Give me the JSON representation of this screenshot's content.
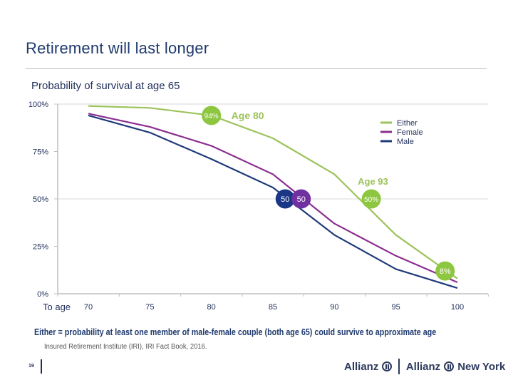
{
  "page": {
    "title": "Retirement will last longer",
    "subtitle": "Probability of survival at age 65",
    "footnote": "Either = probability at least one member of male-female couple (both age 65) could survive to approximate age",
    "source": "Insured Retirement Institute (IRI), IRI Fact Book, 2016.",
    "page_number": "19",
    "logos": [
      "Allianz",
      "Allianz New York"
    ]
  },
  "chart_data": {
    "type": "line",
    "title": "Probability of survival at age 65",
    "xlabel": "To age",
    "ylabel": "",
    "x": [
      70,
      75,
      80,
      85,
      90,
      95,
      100
    ],
    "xticks": [
      "70",
      "75",
      "80",
      "85",
      "90",
      "95",
      "100"
    ],
    "yticks": [
      "0%",
      "25%",
      "50%",
      "75%",
      "100%"
    ],
    "ylim": [
      0,
      100
    ],
    "xlim": [
      70,
      100
    ],
    "gridlines": [
      50,
      100
    ],
    "legend_position": "top-right",
    "series": [
      {
        "name": "Either",
        "color": "#9dc35b",
        "values": [
          99,
          98,
          94,
          82,
          63,
          31,
          8
        ]
      },
      {
        "name": "Female",
        "color": "#8b2f8f",
        "values": [
          95,
          88,
          78,
          63,
          37,
          20,
          6
        ]
      },
      {
        "name": "Male",
        "color": "#1f3a7a",
        "values": [
          94,
          85,
          71,
          56,
          31,
          13,
          3
        ]
      }
    ],
    "annotations": [
      {
        "series": "Either",
        "x": 80,
        "y": 94,
        "label": "94%",
        "color": "#8dc63f",
        "caption": "Age 80"
      },
      {
        "series": "Male",
        "x": 86,
        "y": 50,
        "label": "50",
        "color": "#1a3686"
      },
      {
        "series": "Female",
        "x": 87.3,
        "y": 50,
        "label": "50",
        "color": "#7030a0"
      },
      {
        "series": "Either",
        "x": 93,
        "y": 50,
        "label": "50%",
        "color": "#8dc63f",
        "caption": "Age 93"
      },
      {
        "series": "Either",
        "x": 99,
        "y": 12,
        "label": "8%",
        "color": "#8dc63f"
      }
    ]
  }
}
